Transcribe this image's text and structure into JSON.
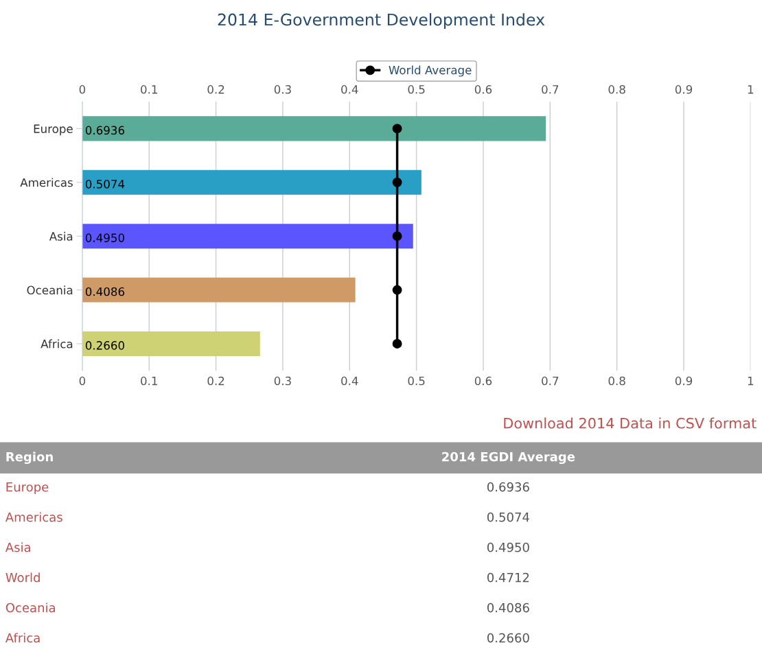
{
  "chart_data": {
    "type": "bar",
    "orientation": "horizontal",
    "title": "2014 E-Government Development Index",
    "categories": [
      "Europe",
      "Americas",
      "Asia",
      "Oceania",
      "Africa"
    ],
    "series": [
      {
        "colors": [
          "#5aab98",
          "#2a9fc6",
          "#5a55ff",
          "#d09a66",
          "#cfd175"
        ],
        "values": [
          0.6936,
          0.5074,
          0.495,
          0.4086,
          0.266
        ],
        "value_labels": [
          "0.6936",
          "0.5074",
          "0.4950",
          "0.4086",
          "0.2660"
        ]
      },
      {
        "type": "line",
        "name": "World Average",
        "color": "#000000",
        "values": [
          0.4712,
          0.4712,
          0.4712,
          0.4712,
          0.4712
        ],
        "marker": "circle"
      }
    ],
    "xlim": [
      0,
      1
    ],
    "xticks": [
      0,
      0.1,
      0.2,
      0.3,
      0.4,
      0.5,
      0.6,
      0.7,
      0.8,
      0.9,
      1
    ],
    "x2lim": [
      0,
      1
    ],
    "x2ticks": [
      0,
      0.1,
      0.2,
      0.3,
      0.4,
      0.5,
      0.6,
      0.7,
      0.8,
      0.9,
      1
    ],
    "grid": "x",
    "legend": "top",
    "annotations": [
      "Download 2014 Data in CSV format",
      "Region",
      "2014 EGDI Average",
      "Europe",
      "0.6936",
      "Americas",
      "0.5074",
      "Asia",
      "0.4950",
      "World",
      "0.4712",
      "Oceania",
      "0.4086",
      "Africa",
      "0.2660"
    ]
  }
}
